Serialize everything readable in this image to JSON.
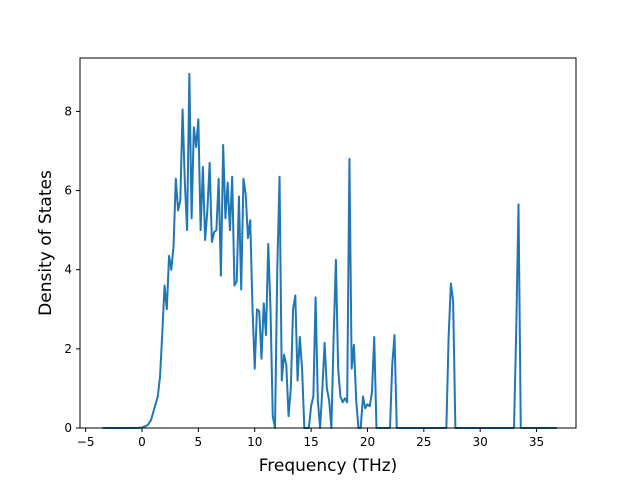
{
  "chart_data": {
    "type": "line",
    "title": "",
    "xlabel": "Frequency (THz)",
    "ylabel": "Density of States",
    "xlim": [
      -5.5,
      38.5
    ],
    "ylim": [
      0,
      9.35
    ],
    "xticks": [
      -5,
      0,
      5,
      10,
      15,
      20,
      25,
      30,
      35
    ],
    "yticks": [
      0,
      2,
      4,
      6,
      8
    ],
    "grid": false,
    "legend": "none",
    "series": [
      {
        "color": "#1f77b4",
        "points": [
          [
            -3.5,
            0
          ],
          [
            -2,
            0
          ],
          [
            -0.5,
            0
          ],
          [
            0,
            0.01
          ],
          [
            0.5,
            0.07
          ],
          [
            0.8,
            0.2
          ],
          [
            1.1,
            0.5
          ],
          [
            1.4,
            0.8
          ],
          [
            1.6,
            1.3
          ],
          [
            1.8,
            2.4
          ],
          [
            2.0,
            3.6
          ],
          [
            2.2,
            3.0
          ],
          [
            2.4,
            4.35
          ],
          [
            2.6,
            4.0
          ],
          [
            2.8,
            4.6
          ],
          [
            3.0,
            6.3
          ],
          [
            3.2,
            5.5
          ],
          [
            3.4,
            5.75
          ],
          [
            3.6,
            8.05
          ],
          [
            3.8,
            6.2
          ],
          [
            4.0,
            5.0
          ],
          [
            4.2,
            8.95
          ],
          [
            4.4,
            5.3
          ],
          [
            4.6,
            7.6
          ],
          [
            4.8,
            7.1
          ],
          [
            5.0,
            7.8
          ],
          [
            5.2,
            5.0
          ],
          [
            5.4,
            6.6
          ],
          [
            5.6,
            4.75
          ],
          [
            5.8,
            5.5
          ],
          [
            6.0,
            6.7
          ],
          [
            6.2,
            4.7
          ],
          [
            6.4,
            4.95
          ],
          [
            6.6,
            5.0
          ],
          [
            6.8,
            6.3
          ],
          [
            7.0,
            3.85
          ],
          [
            7.2,
            7.15
          ],
          [
            7.4,
            5.3
          ],
          [
            7.6,
            6.2
          ],
          [
            7.8,
            5.0
          ],
          [
            8.0,
            6.35
          ],
          [
            8.2,
            3.6
          ],
          [
            8.4,
            3.7
          ],
          [
            8.6,
            5.85
          ],
          [
            8.8,
            3.5
          ],
          [
            9.0,
            6.3
          ],
          [
            9.2,
            5.9
          ],
          [
            9.4,
            4.8
          ],
          [
            9.6,
            5.25
          ],
          [
            9.8,
            3.05
          ],
          [
            10.0,
            1.5
          ],
          [
            10.2,
            3.0
          ],
          [
            10.4,
            2.95
          ],
          [
            10.6,
            1.75
          ],
          [
            10.8,
            3.15
          ],
          [
            11.0,
            2.35
          ],
          [
            11.2,
            4.65
          ],
          [
            11.4,
            3.0
          ],
          [
            11.6,
            0.3
          ],
          [
            11.8,
            0.0
          ],
          [
            12.0,
            4.0
          ],
          [
            12.2,
            6.35
          ],
          [
            12.4,
            1.2
          ],
          [
            12.6,
            1.85
          ],
          [
            12.8,
            1.6
          ],
          [
            13.0,
            0.3
          ],
          [
            13.2,
            1.0
          ],
          [
            13.4,
            3.0
          ],
          [
            13.6,
            3.35
          ],
          [
            13.8,
            1.2
          ],
          [
            14.0,
            2.3
          ],
          [
            14.2,
            1.5
          ],
          [
            14.4,
            0.0
          ],
          [
            14.8,
            0.0
          ],
          [
            15.0,
            0.55
          ],
          [
            15.2,
            0.8
          ],
          [
            15.4,
            3.3
          ],
          [
            15.6,
            0.7
          ],
          [
            15.8,
            0.0
          ],
          [
            16.0,
            1.0
          ],
          [
            16.2,
            2.15
          ],
          [
            16.4,
            1.0
          ],
          [
            16.6,
            0.7
          ],
          [
            16.8,
            0.0
          ],
          [
            17.0,
            2.3
          ],
          [
            17.2,
            4.25
          ],
          [
            17.4,
            1.5
          ],
          [
            17.6,
            0.8
          ],
          [
            17.8,
            0.65
          ],
          [
            18.0,
            0.75
          ],
          [
            18.2,
            0.65
          ],
          [
            18.4,
            6.8
          ],
          [
            18.6,
            1.5
          ],
          [
            18.8,
            2.1
          ],
          [
            19.0,
            0.7
          ],
          [
            19.2,
            0.0
          ],
          [
            19.4,
            0.0
          ],
          [
            19.6,
            0.8
          ],
          [
            19.8,
            0.5
          ],
          [
            20.0,
            0.6
          ],
          [
            20.2,
            0.55
          ],
          [
            20.4,
            0.9
          ],
          [
            20.6,
            2.3
          ],
          [
            20.8,
            0.0
          ],
          [
            21.2,
            0.0
          ],
          [
            21.6,
            0.0
          ],
          [
            22.0,
            0.0
          ],
          [
            22.2,
            1.6
          ],
          [
            22.4,
            2.35
          ],
          [
            22.6,
            0.0
          ],
          [
            23.0,
            0.0
          ],
          [
            25.0,
            0.0
          ],
          [
            27.0,
            0.0
          ],
          [
            27.2,
            2.3
          ],
          [
            27.4,
            3.65
          ],
          [
            27.6,
            3.2
          ],
          [
            27.8,
            0.0
          ],
          [
            29,
            0.0
          ],
          [
            31,
            0.0
          ],
          [
            33.0,
            0.0
          ],
          [
            33.2,
            2.5
          ],
          [
            33.4,
            5.65
          ],
          [
            33.6,
            0.0
          ],
          [
            35,
            0.0
          ],
          [
            36.8,
            0.0
          ]
        ]
      }
    ]
  }
}
